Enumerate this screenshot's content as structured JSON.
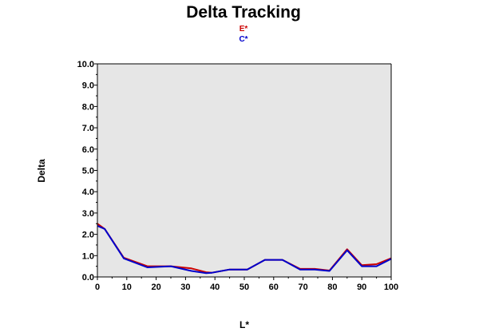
{
  "chart_data": {
    "type": "line",
    "title": "Delta Tracking",
    "xlabel": "L*",
    "ylabel": "Delta",
    "xlim": [
      0,
      100
    ],
    "ylim": [
      0,
      10
    ],
    "grid": false,
    "legend": "top-center",
    "xticks": [
      "0",
      "10",
      "20",
      "30",
      "40",
      "50",
      "60",
      "70",
      "80",
      "90",
      "100"
    ],
    "yticks": [
      "0.0",
      "1.0",
      "2.0",
      "3.0",
      "4.0",
      "5.0",
      "6.0",
      "7.0",
      "8.0",
      "9.0",
      "10.0"
    ],
    "x": [
      0,
      2.5,
      9,
      17,
      25,
      32,
      37,
      39,
      45,
      51,
      57,
      63,
      69,
      74,
      79,
      85,
      90,
      95,
      100
    ],
    "series": [
      {
        "name": "E*",
        "color": "#cc0000",
        "values": [
          2.5,
          2.25,
          0.9,
          0.5,
          0.5,
          0.4,
          0.22,
          0.2,
          0.35,
          0.35,
          0.8,
          0.8,
          0.38,
          0.38,
          0.3,
          1.3,
          0.55,
          0.6,
          0.88
        ]
      },
      {
        "name": "C*",
        "color": "#0000cc",
        "values": [
          2.4,
          2.25,
          0.87,
          0.45,
          0.5,
          0.28,
          0.18,
          0.2,
          0.35,
          0.35,
          0.8,
          0.8,
          0.35,
          0.35,
          0.28,
          1.25,
          0.5,
          0.5,
          0.85
        ]
      }
    ],
    "plot_background": "#e6e6e6"
  }
}
